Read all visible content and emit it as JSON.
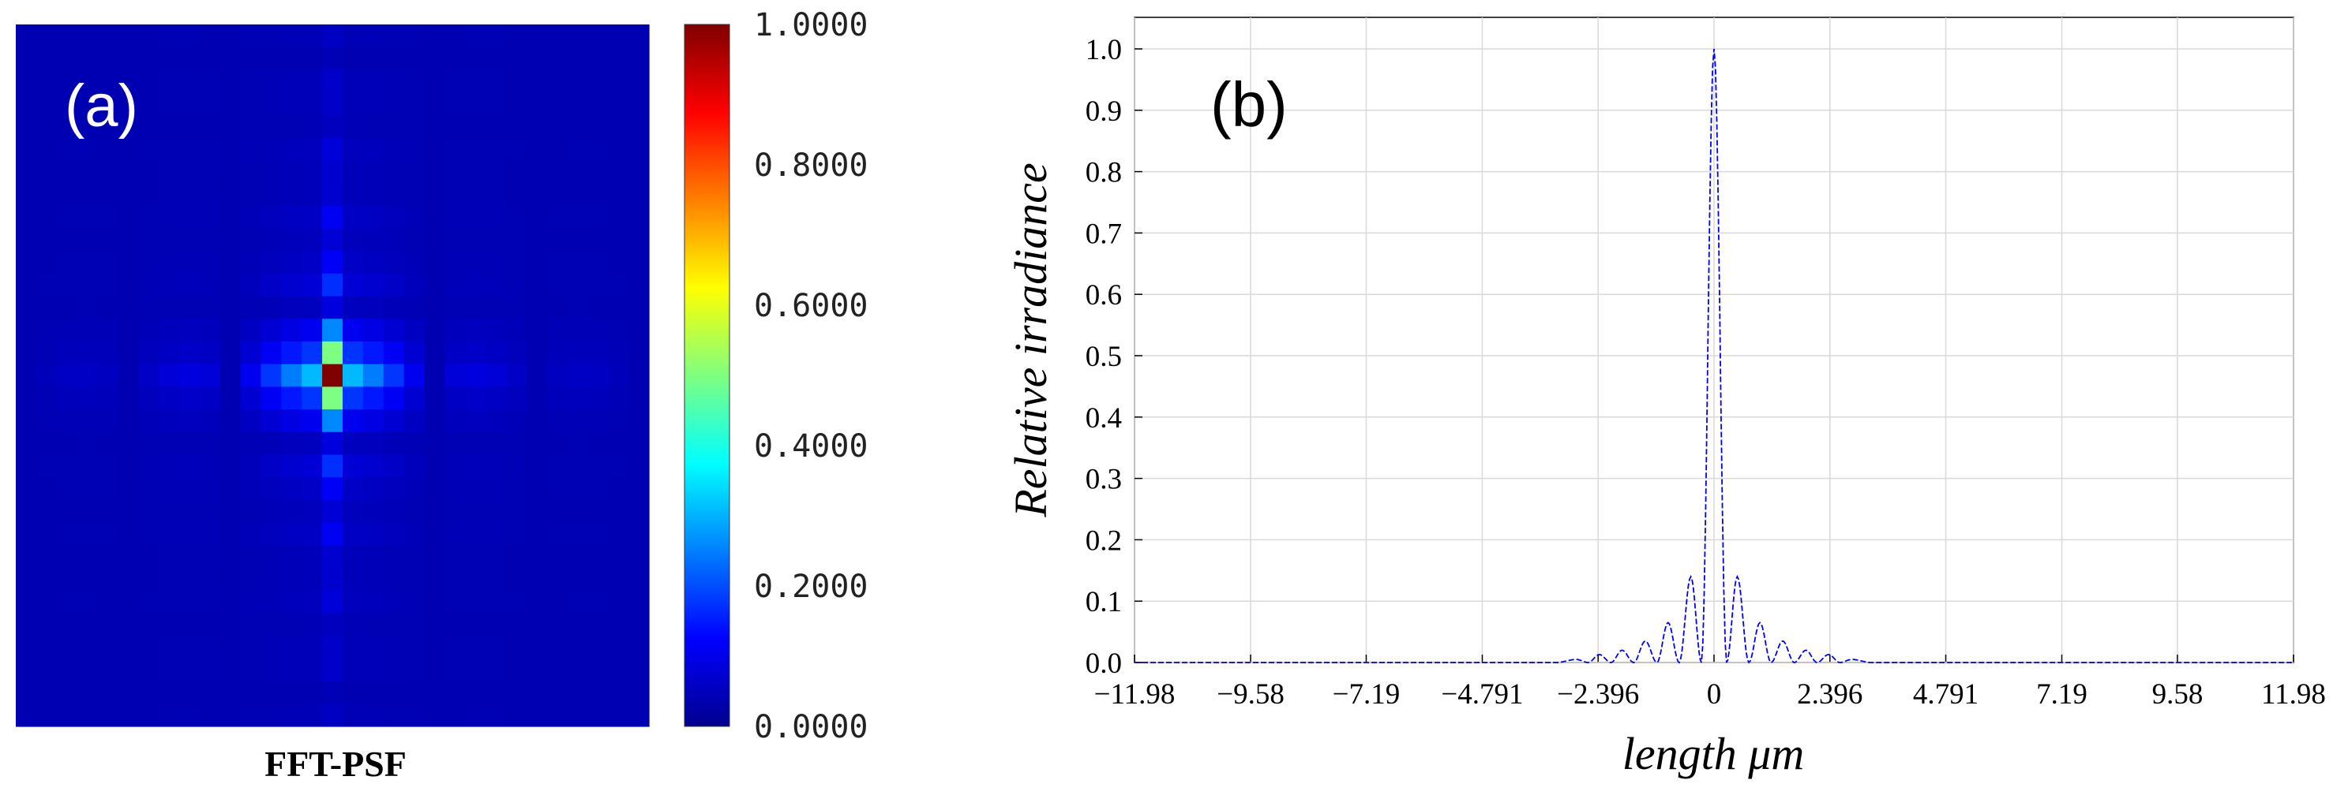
{
  "chart_data": [
    {
      "type": "heatmap",
      "panel_label": "(a)",
      "caption": "FFT-PSF",
      "colormap": "jet",
      "grid_size": 31,
      "colorbar": {
        "range": [
          0,
          1
        ],
        "ticks": [
          {
            "value": 1.0,
            "label": "1.0000"
          },
          {
            "value": 0.8,
            "label": "0.8000"
          },
          {
            "value": 0.6,
            "label": "0.6000"
          },
          {
            "value": 0.4,
            "label": "0.4000"
          },
          {
            "value": 0.2,
            "label": "0.2000"
          },
          {
            "value": 0.0,
            "label": "0.0000"
          }
        ]
      },
      "peak_value": 1.0
    },
    {
      "type": "line",
      "panel_label": "(b)",
      "xlabel": "length μm",
      "ylabel": "Relative irradiance",
      "xlim": [
        -11.98,
        11.98
      ],
      "ylim": [
        0,
        1.05
      ],
      "grid": true,
      "x_ticks": [
        {
          "value": -11.98,
          "label": "−11.98"
        },
        {
          "value": -9.58,
          "label": "−9.58"
        },
        {
          "value": -7.19,
          "label": "−7.19"
        },
        {
          "value": -4.791,
          "label": "−4.791"
        },
        {
          "value": -2.396,
          "label": "−2.396"
        },
        {
          "value": 0,
          "label": "0"
        },
        {
          "value": 2.396,
          "label": "2.396"
        },
        {
          "value": 4.791,
          "label": "4.791"
        },
        {
          "value": 7.19,
          "label": "7.19"
        },
        {
          "value": 9.58,
          "label": "9.58"
        },
        {
          "value": 11.98,
          "label": "11.98"
        }
      ],
      "y_ticks": [
        {
          "value": 0.0,
          "label": "0.0"
        },
        {
          "value": 0.1,
          "label": "0.1"
        },
        {
          "value": 0.2,
          "label": "0.2"
        },
        {
          "value": 0.3,
          "label": "0.3"
        },
        {
          "value": 0.4,
          "label": "0.4"
        },
        {
          "value": 0.5,
          "label": "0.5"
        },
        {
          "value": 0.6,
          "label": "0.6"
        },
        {
          "value": 0.7,
          "label": "0.7"
        },
        {
          "value": 0.8,
          "label": "0.8"
        },
        {
          "value": 0.9,
          "label": "0.9"
        },
        {
          "value": 1.0,
          "label": "1.0"
        }
      ],
      "series": [
        {
          "color": "#0000ff",
          "peaks": [
            {
              "x": 0.0,
              "y": 1.0
            },
            {
              "x": -0.48,
              "y": 0.14
            },
            {
              "x": 0.48,
              "y": 0.14
            },
            {
              "x": -0.95,
              "y": 0.065
            },
            {
              "x": 0.95,
              "y": 0.065
            },
            {
              "x": -1.42,
              "y": 0.035
            },
            {
              "x": 1.42,
              "y": 0.035
            },
            {
              "x": -1.9,
              "y": 0.02
            },
            {
              "x": 1.9,
              "y": 0.02
            },
            {
              "x": -2.37,
              "y": 0.013
            },
            {
              "x": 2.37,
              "y": 0.013
            },
            {
              "x": -2.85,
              "y": 0.005
            },
            {
              "x": 2.85,
              "y": 0.005
            }
          ],
          "zeros": [
            -2.6,
            -2.13,
            -1.66,
            -1.18,
            -0.72,
            -0.26,
            0.26,
            0.72,
            1.18,
            1.66,
            2.13,
            2.6
          ]
        }
      ]
    }
  ]
}
